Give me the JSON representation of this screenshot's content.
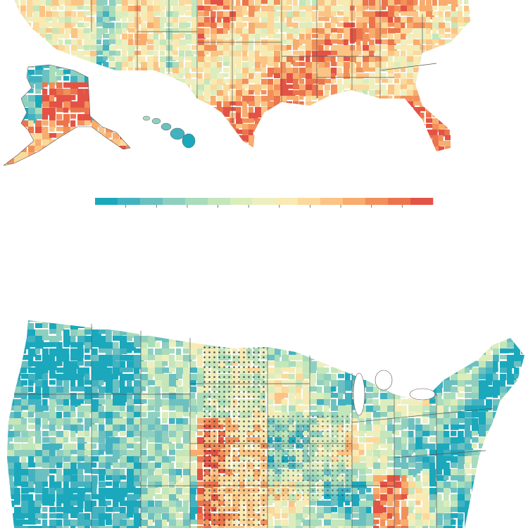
{
  "legend": {
    "palette": [
      "#1ba8bc",
      "#43b2c0",
      "#6cc0c0",
      "#8fcfbf",
      "#a8dcbb",
      "#c3e6bb",
      "#dcedbd",
      "#eeefbf",
      "#f8eab2",
      "#fbd99b",
      "#fbc485",
      "#f8ac6d",
      "#f2905a",
      "#eb744d",
      "#e35345"
    ],
    "tick_count": 10,
    "tick_labels": []
  },
  "maps": [
    {
      "name": "upper-map",
      "labels": []
    },
    {
      "name": "lower-map",
      "labels": [],
      "stipple": "dot-pattern"
    }
  ],
  "colors": {
    "border": "#555555",
    "background": "#ffffff"
  }
}
